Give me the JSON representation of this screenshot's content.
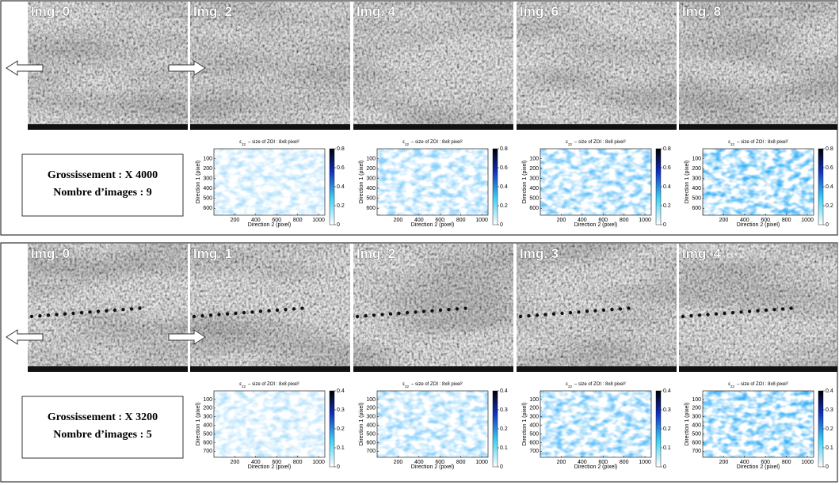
{
  "panels": [
    {
      "images": [
        "Img. 0",
        "Img. 2",
        "Img. 4",
        "Img. 6",
        "Img. 8"
      ],
      "info": [
        "Grossissement : X 4000",
        "Nombre d’images : 9"
      ],
      "map": {
        "symbol": "ε",
        "subscript": "22",
        "title": "– size of ZOI : 8x8 pixel²",
        "x_label": "Direction 2 (pixel)",
        "y_label": "Direction 1 (pixel)",
        "xticks": [
          200,
          400,
          600,
          800,
          1000
        ],
        "yticks": [
          100,
          200,
          300,
          400,
          500,
          600
        ],
        "cbar_ticks": [
          0,
          0.2,
          0.4,
          0.6,
          0.8
        ]
      }
    },
    {
      "images": [
        "Img. 0",
        "Img. 1",
        "Img. 2",
        "Img. 3",
        "Img. 4"
      ],
      "info": [
        "Grossissement : X 3200",
        "Nombre d’images : 5"
      ],
      "map": {
        "symbol": "ε",
        "subscript": "22",
        "title": "– size of ZOI : 8x8 pixel²",
        "x_label": "Direction 2 (pixel)",
        "y_label": "Direction 1 (pixel)",
        "xticks": [
          200,
          400,
          600,
          800,
          1000
        ],
        "yticks": [
          100,
          200,
          300,
          400,
          500,
          600,
          700
        ],
        "cbar_ticks": [
          0,
          0.1,
          0.2,
          0.3,
          0.4
        ]
      }
    }
  ]
}
